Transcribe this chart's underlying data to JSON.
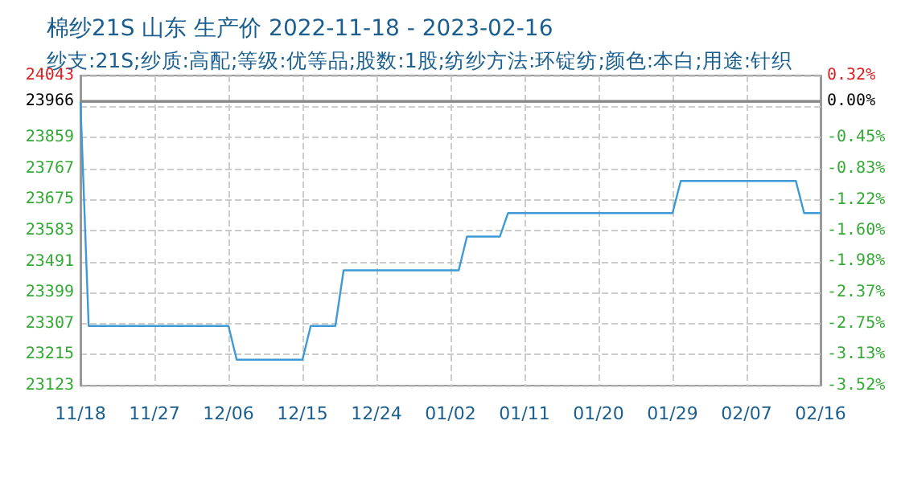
{
  "chart_data": {
    "type": "line",
    "title": "棉纱21S 山东 生产价 2022-11-18 - 2023-02-16",
    "subtitle": "纱支:21S;纱质:高配;等级:优等品;股数:1股;纺纱方法:环锭纺;颜色:本白;用途:针织",
    "x": [
      "2022-11-18",
      "2022-11-19",
      "2022-12-06",
      "2022-12-07",
      "2022-12-15",
      "2022-12-16",
      "2022-12-19",
      "2022-12-20",
      "2023-01-03",
      "2023-01-04",
      "2023-01-08",
      "2023-01-09",
      "2023-01-29",
      "2023-01-30",
      "2023-02-13",
      "2023-02-14",
      "2023-02-16"
    ],
    "series": [
      {
        "color": "#3d9ad6",
        "values": [
          23966,
          23300,
          23300,
          23200,
          23200,
          23300,
          23300,
          23465,
          23465,
          23565,
          23565,
          23635,
          23635,
          23730,
          23730,
          23635,
          23635
        ]
      }
    ],
    "xlim": [
      "2022-11-18",
      "2023-02-16"
    ],
    "xticks": [
      {
        "value": "2022-11-18",
        "label": "11/18"
      },
      {
        "value": "2022-11-27",
        "label": "11/27"
      },
      {
        "value": "2022-12-06",
        "label": "12/06"
      },
      {
        "value": "2022-12-15",
        "label": "12/15"
      },
      {
        "value": "2022-12-24",
        "label": "12/24"
      },
      {
        "value": "2023-01-02",
        "label": "01/02"
      },
      {
        "value": "2023-01-11",
        "label": "01/11"
      },
      {
        "value": "2023-01-20",
        "label": "01/20"
      },
      {
        "value": "2023-01-29",
        "label": "01/29"
      },
      {
        "value": "2023-02-07",
        "label": "02/07"
      },
      {
        "value": "2023-02-16",
        "label": "02/16"
      }
    ],
    "ylim": [
      23123,
      24043
    ],
    "yticks": [
      23123,
      23215,
      23307,
      23399,
      23491,
      23583,
      23675,
      23767,
      23859,
      {
        "value": 23951,
        "label": null
      },
      23966,
      24043
    ],
    "y2lim": [
      -3.52,
      0.32
    ],
    "y2ticks": [
      {
        "value": -3.52,
        "label": "-3.52%"
      },
      {
        "value": -3.13,
        "label": "-3.13%"
      },
      {
        "value": -2.75,
        "label": "-2.75%"
      },
      {
        "value": -2.37,
        "label": "-2.37%"
      },
      {
        "value": -1.98,
        "label": "-1.98%"
      },
      {
        "value": -1.6,
        "label": "-1.60%"
      },
      {
        "value": -1.22,
        "label": "-1.22%"
      },
      {
        "value": -0.83,
        "label": "-0.83%"
      },
      {
        "value": -0.45,
        "label": "-0.45%"
      },
      {
        "value": 0,
        "label": "0.00%"
      },
      {
        "value": 0.32,
        "label": "0.32%"
      }
    ],
    "ref_lines": [
      {
        "axis": "y",
        "value": 23966,
        "color": "#888888"
      }
    ],
    "grid": true,
    "marker": "none",
    "line_style": "solid"
  }
}
